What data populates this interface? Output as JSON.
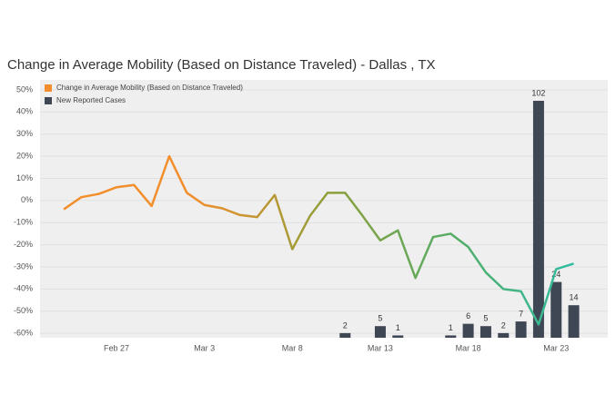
{
  "chart_data": {
    "type": "line-bar",
    "title": "Change in Average Mobility (Based on Distance Traveled) - Dallas , TX",
    "x": [
      "Feb 24",
      "Feb 25",
      "Feb 26",
      "Feb 27",
      "Feb 28",
      "Feb 29",
      "Mar 1",
      "Mar 2",
      "Mar 3",
      "Mar 4",
      "Mar 5",
      "Mar 6",
      "Mar 7",
      "Mar 8",
      "Mar 9",
      "Mar 10",
      "Mar 11",
      "Mar 12",
      "Mar 13",
      "Mar 14",
      "Mar 15",
      "Mar 16",
      "Mar 17",
      "Mar 18",
      "Mar 19",
      "Mar 20",
      "Mar 21",
      "Mar 22",
      "Mar 23",
      "Mar 24"
    ],
    "xticks": [
      "Feb 27",
      "Mar 3",
      "Mar 8",
      "Mar 13",
      "Mar 18",
      "Mar 23"
    ],
    "series": [
      {
        "name": "Change in Average Mobility (Based on Distance Traveled)",
        "type": "line",
        "color": "#f28e2b",
        "gradient": [
          "#f28e2b",
          "#f28e2b",
          "#8f9f3a",
          "#4fae6a",
          "#2cc0b0"
        ],
        "values": [
          -4,
          1.5,
          3,
          6,
          7,
          -2.5,
          20,
          3.5,
          -2,
          -3.5,
          -6.5,
          -7.5,
          2.5,
          -22,
          -7,
          3.5,
          3.5,
          -7,
          -18,
          -13.5,
          -35,
          -16.5,
          -15,
          -21,
          -32.5,
          -40,
          -41,
          -56,
          -31,
          -28.5
        ]
      },
      {
        "name": "New Reported Cases",
        "type": "bar",
        "axis": "y2",
        "color": "#3f4654",
        "values": [
          null,
          null,
          null,
          null,
          null,
          null,
          null,
          null,
          null,
          null,
          null,
          null,
          null,
          null,
          null,
          null,
          2,
          null,
          5,
          1,
          null,
          null,
          1,
          6,
          5,
          2,
          7,
          102,
          24,
          14
        ]
      }
    ],
    "ylim": [
      -62,
      54.5
    ],
    "yticks": [
      {
        "value": 50,
        "label": "50%"
      },
      {
        "value": 40,
        "label": "40%"
      },
      {
        "value": 30,
        "label": "30%"
      },
      {
        "value": 20,
        "label": "20%"
      },
      {
        "value": 10,
        "label": "10%"
      },
      {
        "value": 0,
        "label": "0%"
      },
      {
        "value": -10,
        "label": "-10%"
      },
      {
        "value": -20,
        "label": "-20%"
      },
      {
        "value": -30,
        "label": "-30%"
      },
      {
        "value": -40,
        "label": "-40%"
      },
      {
        "value": -50,
        "label": "-50%"
      },
      {
        "value": -60,
        "label": "-60%"
      }
    ],
    "y2lim": [
      0,
      111
    ],
    "grid": true,
    "legend": "top-left"
  }
}
